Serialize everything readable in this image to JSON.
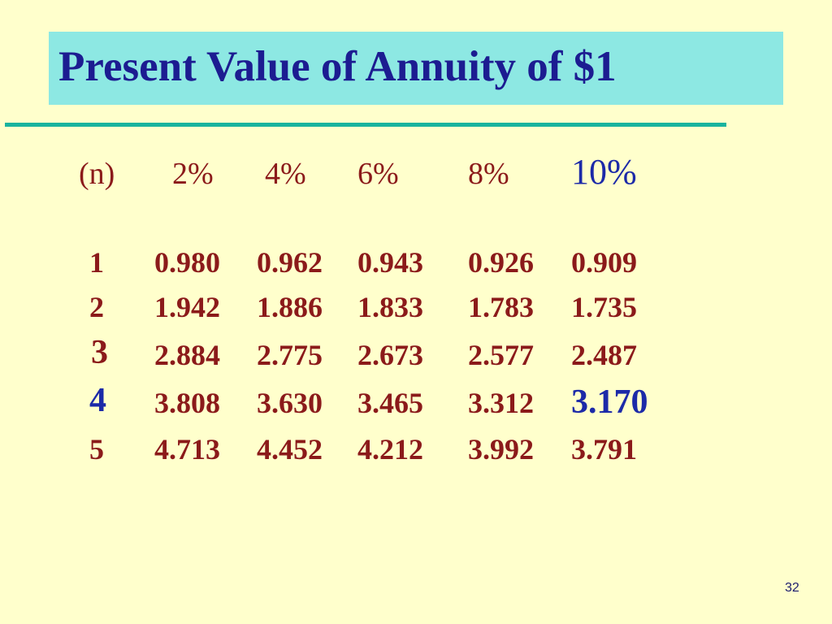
{
  "title": "Present Value of Annuity of $1",
  "table": {
    "header": {
      "n_label": "(n)",
      "rates": [
        "2%",
        "4%",
        "6%",
        "8%",
        "10%"
      ]
    },
    "rows": [
      {
        "n": "1",
        "values": [
          "0.980",
          "0.962",
          "0.943",
          "0.926",
          "0.909"
        ]
      },
      {
        "n": "2",
        "values": [
          "1.942",
          "1.886",
          "1.833",
          "1.783",
          "1.735"
        ]
      },
      {
        "n": "3",
        "values": [
          "2.884",
          "2.775",
          "2.673",
          "2.577",
          "2.487"
        ]
      },
      {
        "n": "4",
        "values": [
          "3.808",
          "3.630",
          "3.465",
          "3.312",
          "3.170"
        ]
      },
      {
        "n": "5",
        "values": [
          "4.713",
          "4.452",
          "4.212",
          "3.992",
          "3.791"
        ]
      }
    ],
    "highlight": {
      "rate": "10%",
      "n": "4",
      "value": "3.170"
    }
  },
  "slide_number": "32",
  "colors": {
    "background": "#ffffcc",
    "title_bar": "#8de8e3",
    "title_text": "#1c1c91",
    "rule": "#19b39e",
    "table_text": "#8b1a1a",
    "highlight_text": "#1c2aa8"
  }
}
